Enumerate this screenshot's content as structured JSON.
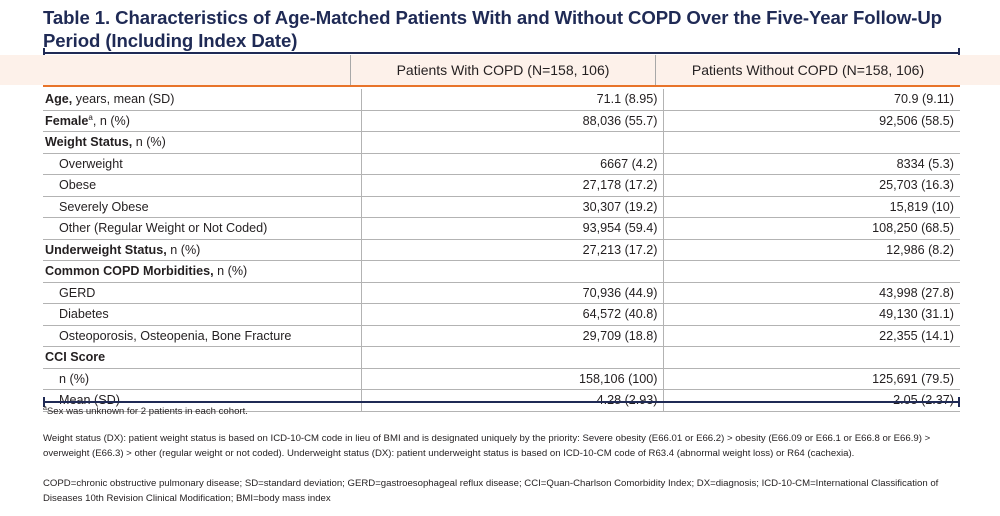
{
  "title": "Table 1. Characteristics of Age-Matched Patients With and Without COPD Over the Five-Year Follow-Up Period (Including Index Date)",
  "columns": [
    "Patients With COPD (N=158, 106)",
    "Patients Without COPD (N=158, 106)"
  ],
  "rows": [
    {
      "label_bold": "Age,",
      "label_rest": " years, mean (SD)",
      "indent": false,
      "v1": "71.1 (8.95)",
      "v2": "70.9 (9.11)"
    },
    {
      "label_bold": "Female",
      "label_sup": "a",
      "label_rest": ", n (%)",
      "indent": false,
      "v1": "88,036 (55.7)",
      "v2": "92,506 (58.5)"
    },
    {
      "label_bold": "Weight Status,",
      "label_rest": " n (%)",
      "indent": false,
      "v1": "",
      "v2": ""
    },
    {
      "label_bold": "",
      "label_rest": "Overweight",
      "indent": true,
      "v1": "6667 (4.2)",
      "v2": "8334 (5.3)"
    },
    {
      "label_bold": "",
      "label_rest": "Obese",
      "indent": true,
      "v1": "27,178 (17.2)",
      "v2": "25,703 (16.3)"
    },
    {
      "label_bold": "",
      "label_rest": "Severely Obese",
      "indent": true,
      "v1": "30,307 (19.2)",
      "v2": "15,819 (10)"
    },
    {
      "label_bold": "",
      "label_rest": "Other (Regular Weight or Not Coded)",
      "indent": true,
      "v1": "93,954 (59.4)",
      "v2": "108,250 (68.5)"
    },
    {
      "label_bold": "Underweight Status,",
      "label_rest": " n (%)",
      "indent": false,
      "v1": "27,213 (17.2)",
      "v2": "12,986 (8.2)"
    },
    {
      "label_bold": "Common COPD Morbidities,",
      "label_rest": " n (%)",
      "indent": false,
      "v1": "",
      "v2": ""
    },
    {
      "label_bold": "",
      "label_rest": "GERD",
      "indent": true,
      "v1": "70,936 (44.9)",
      "v2": "43,998 (27.8)"
    },
    {
      "label_bold": "",
      "label_rest": "Diabetes",
      "indent": true,
      "v1": "64,572 (40.8)",
      "v2": "49,130 (31.1)"
    },
    {
      "label_bold": "",
      "label_rest": "Osteoporosis, Osteopenia, Bone Fracture",
      "indent": true,
      "v1": "29,709 (18.8)",
      "v2": "22,355 (14.1)"
    },
    {
      "label_bold": "CCI Score",
      "label_rest": "",
      "indent": false,
      "v1": "",
      "v2": ""
    },
    {
      "label_bold": "",
      "label_rest": "n (%)",
      "indent": true,
      "v1": "158,106 (100)",
      "v2": "125,691 (79.5)"
    },
    {
      "label_bold": "",
      "label_rest": "Mean (SD)",
      "indent": true,
      "v1": "4.28 (2.93)",
      "v2": "2.05 (2.37)"
    }
  ],
  "footnotes": {
    "a_sup": "a",
    "a_text": "Sex was unknown for 2 patients in each cohort.",
    "weight": "Weight status (DX): patient weight status is based on ICD-10-CM code in lieu of BMI and is designated uniquely by the priority: Severe obesity (E66.01 or E66.2) > obesity (E66.09 or E66.1 or E66.8 or E66.9) > overweight (E66.3) > other (regular weight or not coded). Underweight status (DX): patient underweight status is based on ICD-10-CM code of R63.4 (abnormal weight loss) or R64 (cachexia).",
    "abbrev": "COPD=chronic obstructive pulmonary disease; SD=standard deviation; GERD=gastroesophageal reflux disease; CCI=Quan-Charlson Comorbidity Index; DX=diagnosis; ICD-10-CM=International Classification of Diseases 10th Revision Clinical Modification; BMI=body mass index"
  }
}
